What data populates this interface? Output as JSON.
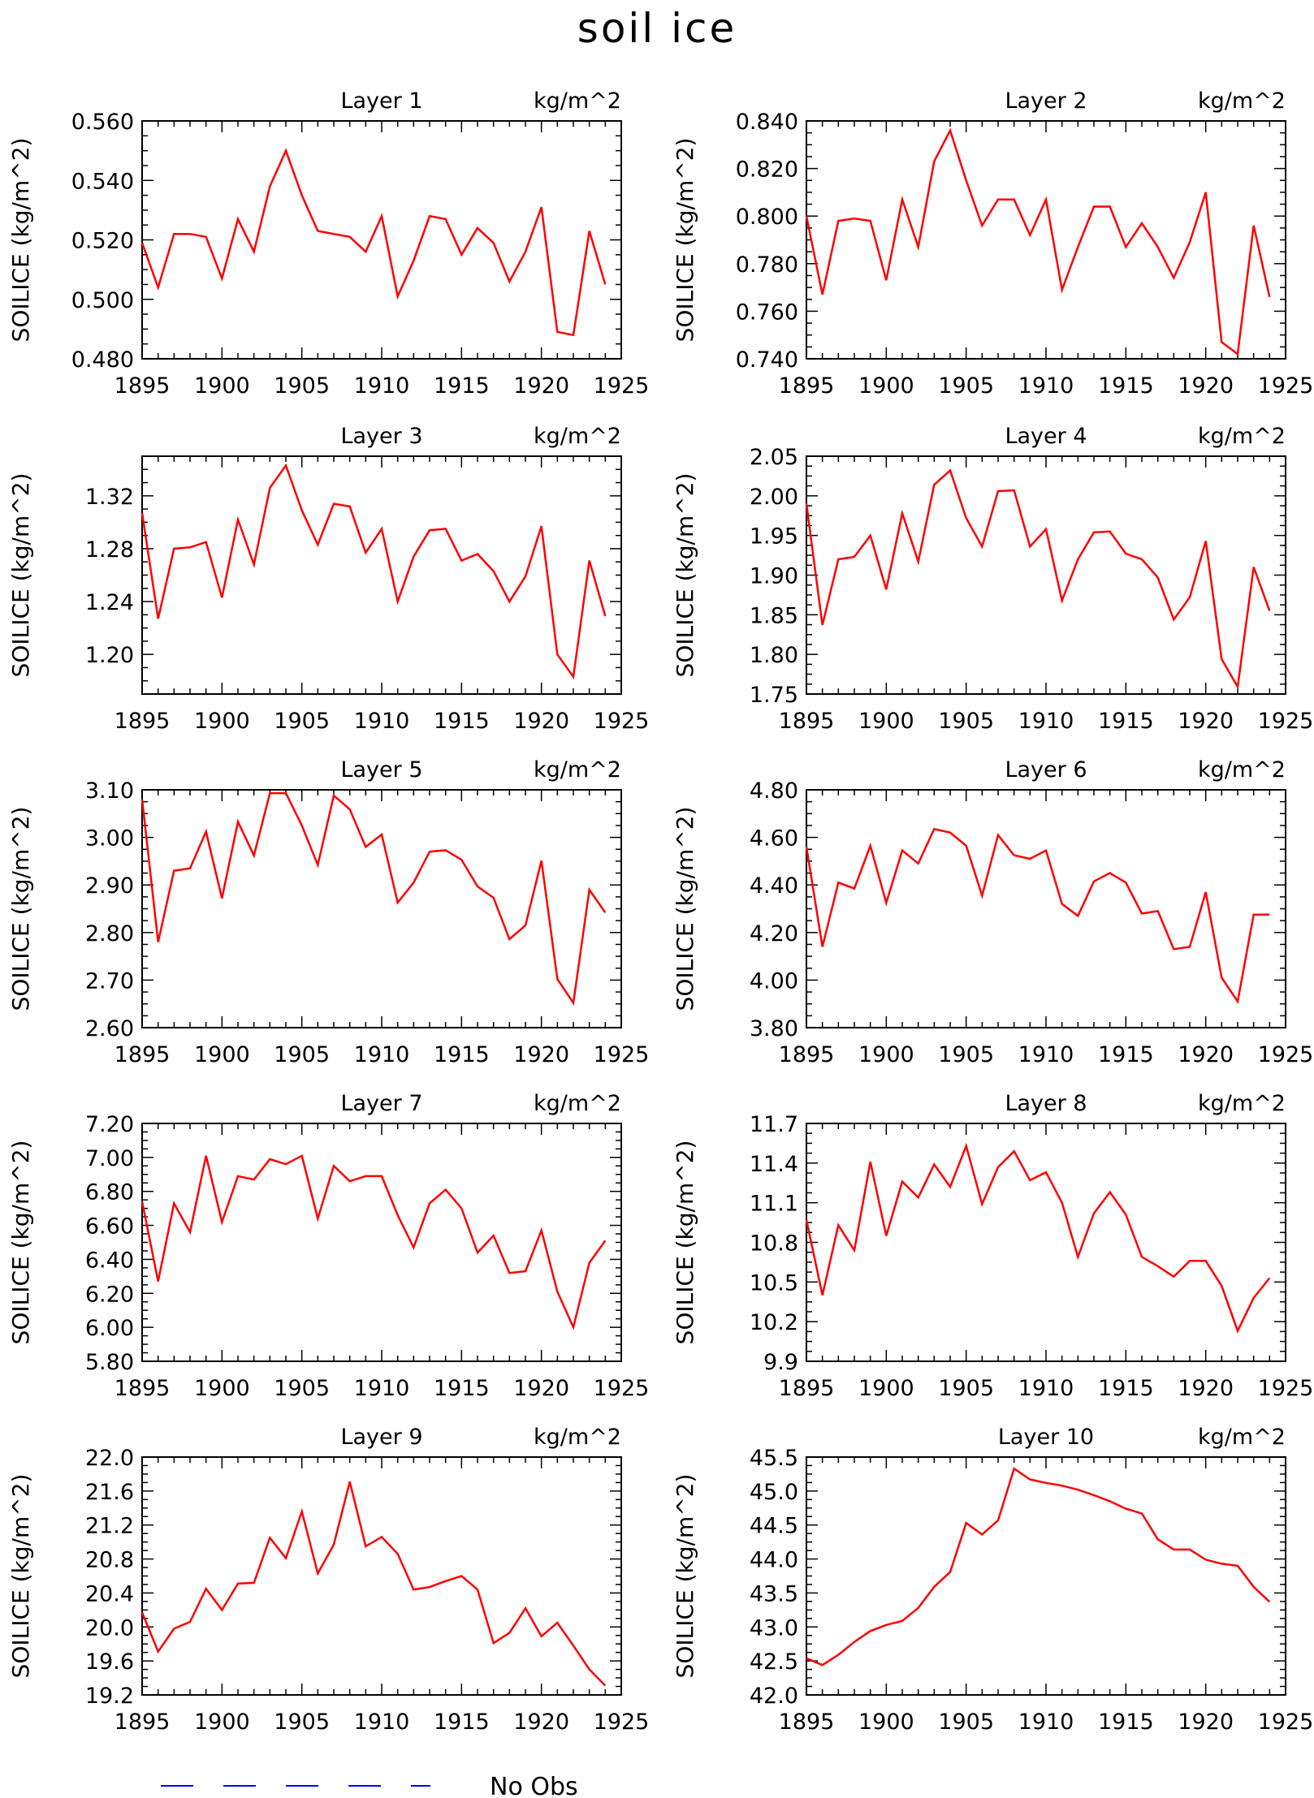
{
  "page_title": "soil ice",
  "legend": {
    "label": "No Obs",
    "color": "#0000ff"
  },
  "line_color": "#ff0000",
  "chart_data": [
    {
      "type": "line",
      "title": "Layer 1",
      "unit": "kg/m^2",
      "ylabel": "SOILICE  (kg/m^2)",
      "x": [
        1895,
        1896,
        1897,
        1898,
        1899,
        1900,
        1901,
        1902,
        1903,
        1904,
        1905,
        1906,
        1907,
        1908,
        1909,
        1910,
        1911,
        1912,
        1913,
        1914,
        1915,
        1916,
        1917,
        1918,
        1919,
        1920,
        1921,
        1922,
        1923,
        1924
      ],
      "values": [
        0.519,
        0.504,
        0.522,
        0.522,
        0.521,
        0.507,
        0.527,
        0.516,
        0.538,
        0.55,
        0.535,
        0.523,
        0.522,
        0.521,
        0.516,
        0.528,
        0.501,
        0.513,
        0.528,
        0.527,
        0.515,
        0.524,
        0.519,
        0.506,
        0.516,
        0.531,
        0.489,
        0.488,
        0.523,
        0.505
      ],
      "xlim": [
        1895,
        1925
      ],
      "ylim": [
        0.48,
        0.56
      ],
      "xticks": [
        "1895",
        "1900",
        "1905",
        "1910",
        "1915",
        "1920",
        "1925"
      ],
      "yticks": [
        "0.480",
        "0.500",
        "0.520",
        "0.540",
        "0.560"
      ]
    },
    {
      "type": "line",
      "title": "Layer 2",
      "unit": "kg/m^2",
      "ylabel": "SOILICE  (kg/m^2)",
      "x": [
        1895,
        1896,
        1897,
        1898,
        1899,
        1900,
        1901,
        1902,
        1903,
        1904,
        1905,
        1906,
        1907,
        1908,
        1909,
        1910,
        1911,
        1912,
        1913,
        1914,
        1915,
        1916,
        1917,
        1918,
        1919,
        1920,
        1921,
        1922,
        1923,
        1924
      ],
      "values": [
        0.8,
        0.767,
        0.798,
        0.799,
        0.798,
        0.773,
        0.807,
        0.787,
        0.823,
        0.836,
        0.815,
        0.796,
        0.807,
        0.807,
        0.792,
        0.807,
        0.769,
        0.787,
        0.804,
        0.804,
        0.787,
        0.797,
        0.787,
        0.774,
        0.789,
        0.81,
        0.747,
        0.742,
        0.796,
        0.766
      ],
      "xlim": [
        1895,
        1925
      ],
      "ylim": [
        0.74,
        0.84
      ],
      "xticks": [
        "1895",
        "1900",
        "1905",
        "1910",
        "1915",
        "1920",
        "1925"
      ],
      "yticks": [
        "0.740",
        "0.760",
        "0.780",
        "0.800",
        "0.820",
        "0.840"
      ]
    },
    {
      "type": "line",
      "title": "Layer 3",
      "unit": "kg/m^2",
      "ylabel": "SOILICE  (kg/m^2)",
      "x": [
        1895,
        1896,
        1897,
        1898,
        1899,
        1900,
        1901,
        1902,
        1903,
        1904,
        1905,
        1906,
        1907,
        1908,
        1909,
        1910,
        1911,
        1912,
        1913,
        1914,
        1915,
        1916,
        1917,
        1918,
        1919,
        1920,
        1921,
        1922,
        1923,
        1924
      ],
      "values": [
        1.307,
        1.227,
        1.28,
        1.281,
        1.285,
        1.243,
        1.302,
        1.268,
        1.326,
        1.343,
        1.309,
        1.283,
        1.314,
        1.312,
        1.277,
        1.295,
        1.24,
        1.274,
        1.294,
        1.295,
        1.271,
        1.276,
        1.263,
        1.24,
        1.259,
        1.297,
        1.2,
        1.183,
        1.271,
        1.229
      ],
      "xlim": [
        1895,
        1925
      ],
      "ylim": [
        1.17,
        1.35
      ],
      "xticks": [
        "1895",
        "1900",
        "1905",
        "1910",
        "1915",
        "1920",
        "1925"
      ],
      "yticks": [
        "1.20",
        "1.24",
        "1.28",
        "1.32"
      ]
    },
    {
      "type": "line",
      "title": "Layer 4",
      "unit": "kg/m^2",
      "ylabel": "SOILICE  (kg/m^2)",
      "x": [
        1895,
        1896,
        1897,
        1898,
        1899,
        1900,
        1901,
        1902,
        1903,
        1904,
        1905,
        1906,
        1907,
        1908,
        1909,
        1910,
        1911,
        1912,
        1913,
        1914,
        1915,
        1916,
        1917,
        1918,
        1919,
        1920,
        1921,
        1922,
        1923,
        1924
      ],
      "values": [
        1.99,
        1.837,
        1.92,
        1.923,
        1.95,
        1.882,
        1.978,
        1.917,
        2.014,
        2.032,
        1.972,
        1.936,
        2.006,
        2.007,
        1.936,
        1.958,
        1.868,
        1.92,
        1.954,
        1.955,
        1.927,
        1.92,
        1.897,
        1.844,
        1.872,
        1.943,
        1.794,
        1.759,
        1.91,
        1.855
      ],
      "xlim": [
        1895,
        1925
      ],
      "ylim": [
        1.75,
        2.05
      ],
      "xticks": [
        "1895",
        "1900",
        "1905",
        "1910",
        "1915",
        "1920",
        "1925"
      ],
      "yticks": [
        "1.75",
        "1.80",
        "1.85",
        "1.90",
        "1.95",
        "2.00",
        "2.05"
      ]
    },
    {
      "type": "line",
      "title": "Layer 5",
      "unit": "kg/m^2",
      "ylabel": "SOILICE  (kg/m^2)",
      "x": [
        1895,
        1896,
        1897,
        1898,
        1899,
        1900,
        1901,
        1902,
        1903,
        1904,
        1905,
        1906,
        1907,
        1908,
        1909,
        1910,
        1911,
        1912,
        1913,
        1914,
        1915,
        1916,
        1917,
        1918,
        1919,
        1920,
        1921,
        1922,
        1923,
        1924
      ],
      "values": [
        3.08,
        2.78,
        2.93,
        2.935,
        3.012,
        2.872,
        3.033,
        2.962,
        3.093,
        3.093,
        3.025,
        2.942,
        3.088,
        3.059,
        2.98,
        3.006,
        2.863,
        2.905,
        2.97,
        2.973,
        2.953,
        2.897,
        2.873,
        2.786,
        2.815,
        2.951,
        2.702,
        2.652,
        2.89,
        2.842
      ],
      "xlim": [
        1895,
        1925
      ],
      "ylim": [
        2.6,
        3.1
      ],
      "xticks": [
        "1895",
        "1900",
        "1905",
        "1910",
        "1915",
        "1920",
        "1925"
      ],
      "yticks": [
        "2.60",
        "2.70",
        "2.80",
        "2.90",
        "3.00",
        "3.10"
      ]
    },
    {
      "type": "line",
      "title": "Layer 6",
      "unit": "kg/m^2",
      "ylabel": "SOILICE  (kg/m^2)",
      "x": [
        1895,
        1896,
        1897,
        1898,
        1899,
        1900,
        1901,
        1902,
        1903,
        1904,
        1905,
        1906,
        1907,
        1908,
        1909,
        1910,
        1911,
        1912,
        1913,
        1914,
        1915,
        1916,
        1917,
        1918,
        1919,
        1920,
        1921,
        1922,
        1923,
        1924
      ],
      "values": [
        4.56,
        4.14,
        4.41,
        4.385,
        4.565,
        4.325,
        4.545,
        4.49,
        4.635,
        4.62,
        4.565,
        4.355,
        4.61,
        4.525,
        4.51,
        4.545,
        4.32,
        4.27,
        4.415,
        4.45,
        4.41,
        4.28,
        4.29,
        4.13,
        4.14,
        4.37,
        4.01,
        3.91,
        4.275,
        4.275
      ],
      "xlim": [
        1895,
        1925
      ],
      "ylim": [
        3.8,
        4.8
      ],
      "xticks": [
        "1895",
        "1900",
        "1905",
        "1910",
        "1915",
        "1920",
        "1925"
      ],
      "yticks": [
        "3.80",
        "4.00",
        "4.20",
        "4.40",
        "4.60",
        "4.80"
      ]
    },
    {
      "type": "line",
      "title": "Layer 7",
      "unit": "kg/m^2",
      "ylabel": "SOILICE  (kg/m^2)",
      "x": [
        1895,
        1896,
        1897,
        1898,
        1899,
        1900,
        1901,
        1902,
        1903,
        1904,
        1905,
        1906,
        1907,
        1908,
        1909,
        1910,
        1911,
        1912,
        1913,
        1914,
        1915,
        1916,
        1917,
        1918,
        1919,
        1920,
        1921,
        1922,
        1923,
        1924
      ],
      "values": [
        6.74,
        6.27,
        6.73,
        6.56,
        7.01,
        6.62,
        6.89,
        6.87,
        6.99,
        6.96,
        7.01,
        6.64,
        6.95,
        6.86,
        6.89,
        6.89,
        6.66,
        6.47,
        6.73,
        6.81,
        6.7,
        6.44,
        6.54,
        6.32,
        6.33,
        6.57,
        6.21,
        6.0,
        6.38,
        6.51
      ],
      "xlim": [
        1895,
        1925
      ],
      "ylim": [
        5.8,
        7.2
      ],
      "xticks": [
        "1895",
        "1900",
        "1905",
        "1910",
        "1915",
        "1920",
        "1925"
      ],
      "yticks": [
        "5.80",
        "6.00",
        "6.20",
        "6.40",
        "6.60",
        "6.80",
        "7.00",
        "7.20"
      ]
    },
    {
      "type": "line",
      "title": "Layer 8",
      "unit": "kg/m^2",
      "ylabel": "SOILICE  (kg/m^2)",
      "x": [
        1895,
        1896,
        1897,
        1898,
        1899,
        1900,
        1901,
        1902,
        1903,
        1904,
        1905,
        1906,
        1907,
        1908,
        1909,
        1910,
        1911,
        1912,
        1913,
        1914,
        1915,
        1916,
        1917,
        1918,
        1919,
        1920,
        1921,
        1922,
        1923,
        1924
      ],
      "values": [
        10.97,
        10.4,
        10.93,
        10.74,
        11.41,
        10.85,
        11.26,
        11.14,
        11.39,
        11.22,
        11.53,
        11.09,
        11.37,
        11.49,
        11.27,
        11.33,
        11.1,
        10.69,
        11.02,
        11.18,
        11.01,
        10.69,
        10.62,
        10.54,
        10.66,
        10.66,
        10.47,
        10.13,
        10.38,
        10.53
      ],
      "xlim": [
        1895,
        1925
      ],
      "ylim": [
        9.9,
        11.7
      ],
      "xticks": [
        "1895",
        "1900",
        "1905",
        "1910",
        "1915",
        "1920",
        "1925"
      ],
      "yticks": [
        "9.9",
        "10.2",
        "10.5",
        "10.8",
        "11.1",
        "11.4",
        "11.7"
      ]
    },
    {
      "type": "line",
      "title": "Layer 9",
      "unit": "kg/m^2",
      "ylabel": "SOILICE  (kg/m^2)",
      "x": [
        1895,
        1896,
        1897,
        1898,
        1899,
        1900,
        1901,
        1902,
        1903,
        1904,
        1905,
        1906,
        1907,
        1908,
        1909,
        1910,
        1911,
        1912,
        1913,
        1914,
        1915,
        1916,
        1917,
        1918,
        1919,
        1920,
        1921,
        1922,
        1923,
        1924
      ],
      "values": [
        20.17,
        19.71,
        19.98,
        20.06,
        20.45,
        20.2,
        20.51,
        20.52,
        21.05,
        20.81,
        21.36,
        20.63,
        20.97,
        21.71,
        20.95,
        21.06,
        20.86,
        20.44,
        20.47,
        20.54,
        20.6,
        20.44,
        19.81,
        19.93,
        20.22,
        19.89,
        20.05,
        19.78,
        19.5,
        19.31
      ],
      "xlim": [
        1895,
        1925
      ],
      "ylim": [
        19.2,
        22.0
      ],
      "xticks": [
        "1895",
        "1900",
        "1905",
        "1910",
        "1915",
        "1920",
        "1925"
      ],
      "yticks": [
        "19.2",
        "19.6",
        "20.0",
        "20.4",
        "20.8",
        "21.2",
        "21.6",
        "22.0"
      ]
    },
    {
      "type": "line",
      "title": "Layer 10",
      "unit": "kg/m^2",
      "ylabel": "SOILICE  (kg/m^2)",
      "x": [
        1895,
        1896,
        1897,
        1898,
        1899,
        1900,
        1901,
        1902,
        1903,
        1904,
        1905,
        1906,
        1907,
        1908,
        1909,
        1910,
        1911,
        1912,
        1913,
        1914,
        1915,
        1916,
        1917,
        1918,
        1919,
        1920,
        1921,
        1922,
        1923,
        1924
      ],
      "values": [
        42.54,
        42.44,
        42.59,
        42.78,
        42.94,
        43.03,
        43.09,
        43.28,
        43.59,
        43.81,
        44.53,
        44.36,
        44.57,
        45.33,
        45.17,
        45.12,
        45.08,
        45.02,
        44.94,
        44.85,
        44.74,
        44.67,
        44.29,
        44.14,
        44.14,
        43.99,
        43.93,
        43.9,
        43.59,
        43.37
      ],
      "xlim": [
        1895,
        1925
      ],
      "ylim": [
        42.0,
        45.5
      ],
      "xticks": [
        "1895",
        "1900",
        "1905",
        "1910",
        "1915",
        "1920",
        "1925"
      ],
      "yticks": [
        "42.0",
        "42.5",
        "43.0",
        "43.5",
        "44.0",
        "44.5",
        "45.0",
        "45.5"
      ]
    }
  ]
}
